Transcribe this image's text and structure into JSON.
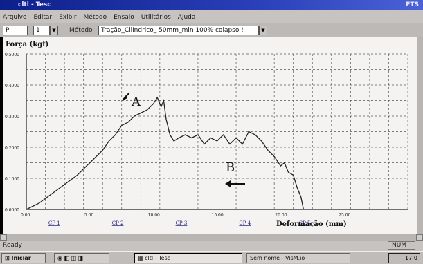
{
  "window": {
    "title": "cltl - Tesc",
    "title_right": "FTS"
  },
  "menu": [
    "Arquivo",
    "Editar",
    "Exibir",
    "Método",
    "Ensaio",
    "Utilitários",
    "Ajuda"
  ],
  "toolbar": {
    "box1_value": "P",
    "box2_value": "1",
    "method_label": "Método",
    "method_value": "Tração_Cilíndrico_ 50mm_min 100% colapso !"
  },
  "chart": {
    "ylabel": "Força (kgf)",
    "xlabel": "Deformação (mm)",
    "xticks": [
      "0.00",
      "5.00",
      "10.00",
      "15.00",
      "20.00",
      "25.00"
    ],
    "yticks": [
      "0.0000",
      "0.1000",
      "0.2000",
      "0.3000",
      "0.4000",
      "0.5000"
    ],
    "cp_labels": [
      "CP 1",
      "CP 2",
      "CP 3",
      "CP 4",
      "CP 5"
    ],
    "annotation_a": "A",
    "annotation_b": "B"
  },
  "chart_data": {
    "type": "line",
    "xlabel": "Deformação (mm)",
    "ylabel": "Força (kgf)",
    "xlim": [
      0,
      30
    ],
    "ylim": [
      0,
      0.5
    ],
    "grid": true,
    "series": [
      {
        "x": [
          0.0,
          1.0,
          2.0,
          3.0,
          4.0,
          5.0,
          6.0,
          6.5,
          7.0,
          7.5,
          8.0,
          8.5,
          9.0,
          9.5,
          10.0,
          10.3,
          10.6,
          10.8,
          11.0,
          11.3,
          11.6,
          12.0,
          12.5,
          13.0,
          13.5,
          14.0,
          14.5,
          15.0,
          15.5,
          16.0,
          16.5,
          17.0,
          17.5,
          18.0,
          18.5,
          19.0,
          19.5,
          20.0,
          20.3,
          20.6,
          21.0,
          21.3,
          21.6,
          21.8
        ],
        "y": [
          0.0,
          0.02,
          0.05,
          0.08,
          0.11,
          0.15,
          0.19,
          0.22,
          0.24,
          0.27,
          0.28,
          0.3,
          0.31,
          0.32,
          0.34,
          0.36,
          0.33,
          0.35,
          0.29,
          0.24,
          0.22,
          0.23,
          0.24,
          0.23,
          0.24,
          0.21,
          0.23,
          0.22,
          0.24,
          0.21,
          0.23,
          0.21,
          0.25,
          0.24,
          0.22,
          0.19,
          0.17,
          0.14,
          0.15,
          0.12,
          0.11,
          0.07,
          0.04,
          0.0
        ]
      }
    ],
    "annotations": [
      {
        "text": "A",
        "x": 10.5,
        "y": 0.36
      },
      {
        "text": "B",
        "x": 21.5,
        "y": 0.11
      }
    ]
  },
  "statusbar": {
    "text": "Ready",
    "num": "NUM"
  },
  "taskbar": {
    "start": "Iniciar",
    "task1": "cltl - Tesc",
    "task2": "Sem nome - VisM.io",
    "clock": "17:0"
  }
}
